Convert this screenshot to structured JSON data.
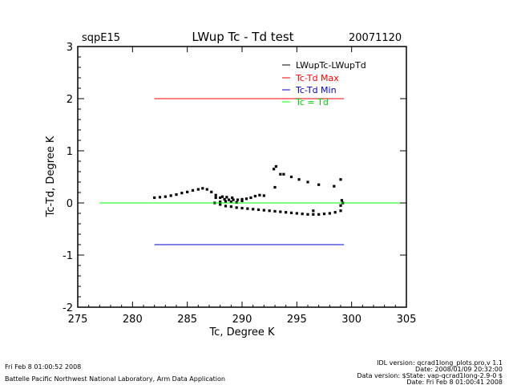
{
  "header": {
    "site": "sqpE15",
    "title": "LWup Tc - Td test",
    "date": "20071120"
  },
  "chart_data": {
    "type": "scatter",
    "title": "LWup Tc - Td test",
    "xlabel": "Tc, Degree K",
    "ylabel": "Tc-Td, Degree K",
    "xlim": [
      275,
      305
    ],
    "ylim": [
      -2,
      3
    ],
    "xticks": [
      275,
      280,
      285,
      290,
      295,
      300,
      305
    ],
    "yticks": [
      -2,
      -1,
      0,
      1,
      2,
      3
    ],
    "legend_position": "top-right",
    "colors": {
      "data": "#000000",
      "max": "#ff0000",
      "min": "#0000cc",
      "zero": "#00ff00"
    },
    "series": [
      {
        "name": "LWupTc-LWupTd",
        "kind": "points",
        "points": [
          [
            282.0,
            0.1
          ],
          [
            282.5,
            0.11
          ],
          [
            283.0,
            0.12
          ],
          [
            283.5,
            0.14
          ],
          [
            284.0,
            0.16
          ],
          [
            284.5,
            0.19
          ],
          [
            285.0,
            0.21
          ],
          [
            285.5,
            0.24
          ],
          [
            286.0,
            0.26
          ],
          [
            286.4,
            0.28
          ],
          [
            286.8,
            0.26
          ],
          [
            287.2,
            0.21
          ],
          [
            287.6,
            0.15
          ],
          [
            288.0,
            0.1
          ],
          [
            288.4,
            0.07
          ],
          [
            288.8,
            0.06
          ],
          [
            289.2,
            0.06
          ],
          [
            289.6,
            0.06
          ],
          [
            290.0,
            0.07
          ],
          [
            290.4,
            0.08
          ],
          [
            290.8,
            0.1
          ],
          [
            291.2,
            0.13
          ],
          [
            291.6,
            0.15
          ],
          [
            292.0,
            0.14
          ],
          [
            287.5,
            0.0
          ],
          [
            288.0,
            -0.03
          ],
          [
            288.5,
            -0.06
          ],
          [
            289.0,
            -0.07
          ],
          [
            289.5,
            -0.09
          ],
          [
            290.0,
            -0.1
          ],
          [
            290.5,
            -0.11
          ],
          [
            291.0,
            -0.12
          ],
          [
            291.5,
            -0.13
          ],
          [
            292.0,
            -0.14
          ],
          [
            292.5,
            -0.15
          ],
          [
            293.0,
            -0.16
          ],
          [
            293.5,
            -0.17
          ],
          [
            294.0,
            -0.18
          ],
          [
            294.5,
            -0.19
          ],
          [
            295.0,
            -0.2
          ],
          [
            295.5,
            -0.21
          ],
          [
            296.0,
            -0.22
          ],
          [
            296.5,
            -0.22
          ],
          [
            297.0,
            -0.22
          ],
          [
            297.5,
            -0.21
          ],
          [
            298.0,
            -0.2
          ],
          [
            298.5,
            -0.18
          ],
          [
            299.0,
            -0.15
          ],
          [
            288.0,
            0.02
          ],
          [
            288.5,
            0.03
          ],
          [
            289.0,
            0.02
          ],
          [
            289.5,
            0.01
          ],
          [
            290.0,
            0.04
          ],
          [
            287.6,
            0.1
          ],
          [
            288.2,
            0.12
          ],
          [
            288.6,
            0.11
          ],
          [
            289.1,
            0.1
          ],
          [
            292.9,
            0.65
          ],
          [
            293.1,
            0.7
          ],
          [
            293.5,
            0.55
          ],
          [
            293.8,
            0.55
          ],
          [
            294.5,
            0.5
          ],
          [
            295.2,
            0.45
          ],
          [
            296.0,
            0.4
          ],
          [
            297.0,
            0.35
          ],
          [
            298.4,
            0.32
          ],
          [
            299.0,
            0.45
          ],
          [
            293.0,
            0.3
          ],
          [
            296.5,
            -0.15
          ],
          [
            299.2,
            0.0
          ],
          [
            299.0,
            -0.05
          ],
          [
            299.1,
            0.05
          ]
        ]
      },
      {
        "name": "Tc-Td Max",
        "kind": "hline",
        "y": 2.0,
        "x": [
          282,
          299.3
        ]
      },
      {
        "name": "Tc-Td Min",
        "kind": "hline",
        "y": -0.8,
        "x": [
          282,
          299.3
        ]
      },
      {
        "name": "Tc = Td",
        "kind": "hline",
        "y": 0.0,
        "x": [
          277,
          304.5
        ]
      }
    ]
  },
  "footer": {
    "run_time": "Fri Feb  8 01:00:52 2008",
    "lab": "Battelle Pacific Northwest National Laboratory, Arm Data Application",
    "idl_version": "IDL version: qcrad1long_plots.pro,v 1.1",
    "idl_date": "Date: 2008/01/09 20:32:00",
    "data_version": "Data version: $State: vap-qcrad1long-2.9-0 $",
    "data_date": "Date: Fri Feb  8 01:00:41 2008"
  }
}
